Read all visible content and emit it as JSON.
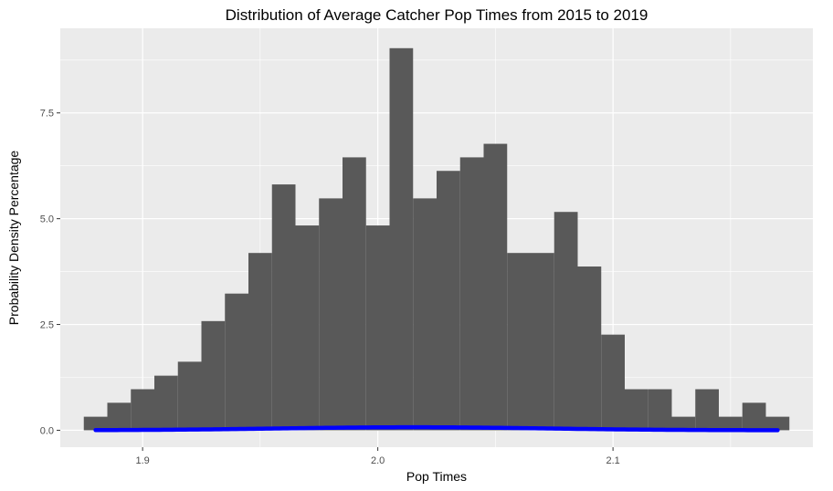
{
  "chart_data": {
    "type": "bar",
    "title": "Distribution of Average Catcher Pop Times from 2015 to 2019",
    "xlabel": "Pop Times",
    "ylabel": "Probability Density Percentage",
    "xlim": [
      1.865,
      2.185
    ],
    "ylim": [
      -0.4,
      9.5
    ],
    "x_ticks": [
      1.9,
      2.0,
      2.1
    ],
    "x_tick_labels": [
      "1.9",
      "2.0",
      "2.1"
    ],
    "y_ticks": [
      0,
      2.5,
      5,
      7.5
    ],
    "y_tick_labels": [
      "0.0",
      "2.5",
      "5.0",
      "7.5"
    ],
    "grid": true,
    "bins": {
      "start": 1.875,
      "width": 0.01,
      "values": [
        0.32,
        0.65,
        0.97,
        1.29,
        1.62,
        2.58,
        3.23,
        4.19,
        5.81,
        4.84,
        5.48,
        6.45,
        4.84,
        9.03,
        5.48,
        6.13,
        6.45,
        6.77,
        4.19,
        4.19,
        5.16,
        3.87,
        2.26,
        0.97,
        0.97,
        0.32,
        0.97,
        0.32,
        0.65,
        0.32
      ]
    },
    "series": [
      {
        "type": "line",
        "function": "normal_density",
        "mean": 2.015,
        "sd": 0.056,
        "x_range": [
          1.88,
          2.17
        ],
        "color": "#0000ff"
      }
    ],
    "colors": {
      "panel_background": "#ebebeb",
      "grid": "#ffffff",
      "bar": "#595959",
      "curve": "#0000ff"
    }
  }
}
